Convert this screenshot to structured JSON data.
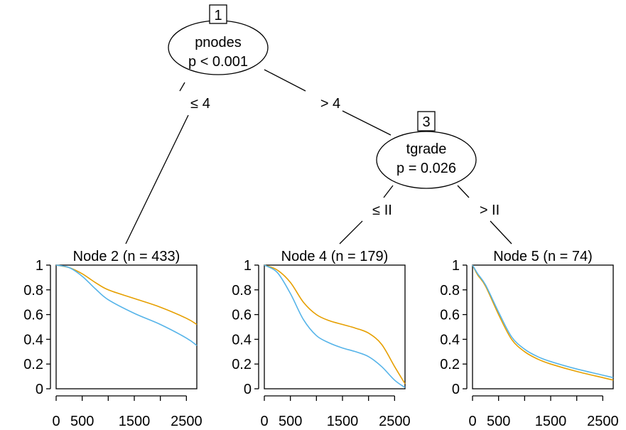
{
  "tree": {
    "inner_nodes": [
      {
        "id": "1",
        "variable": "pnodes",
        "pvalue": "p < 0.001"
      },
      {
        "id": "3",
        "variable": "tgrade",
        "pvalue": "p = 0.026"
      }
    ],
    "edges": [
      {
        "from": "1",
        "to": "2",
        "label": "≤ 4"
      },
      {
        "from": "1",
        "to": "3",
        "label": "> 4"
      },
      {
        "from": "3",
        "to": "4",
        "label": "≤ II"
      },
      {
        "from": "3",
        "to": "5",
        "label": "> II"
      }
    ]
  },
  "colors": {
    "orange": "#E69F00",
    "blue": "#56B4E9"
  },
  "chart_data": [
    {
      "type": "line",
      "title": "Node 2 (n = 433)",
      "xlim": [
        0,
        2700
      ],
      "ylim": [
        0,
        1
      ],
      "x_ticks": [
        0,
        500,
        1000,
        1500,
        2000,
        2500
      ],
      "x_tick_labels": [
        "0",
        "500",
        "",
        "1500",
        "",
        "2500"
      ],
      "y_ticks": [
        0,
        0.2,
        0.4,
        0.6,
        0.8,
        1
      ],
      "y_tick_labels": [
        "0",
        "0.2",
        "0.4",
        "0.6",
        "0.8",
        "1"
      ],
      "x": [
        0,
        250,
        500,
        750,
        1000,
        1500,
        2000,
        2500,
        2700
      ],
      "series": [
        {
          "color": "orange",
          "values": [
            1.0,
            0.98,
            0.93,
            0.86,
            0.8,
            0.73,
            0.66,
            0.57,
            0.52
          ]
        },
        {
          "color": "blue",
          "values": [
            1.0,
            0.98,
            0.91,
            0.81,
            0.72,
            0.61,
            0.52,
            0.41,
            0.35
          ]
        }
      ]
    },
    {
      "type": "line",
      "title": "Node 4 (n = 179)",
      "xlim": [
        0,
        2700
      ],
      "ylim": [
        0,
        1
      ],
      "x_ticks": [
        0,
        500,
        1000,
        1500,
        2000,
        2500
      ],
      "x_tick_labels": [
        "0",
        "500",
        "",
        "1500",
        "",
        "2500"
      ],
      "y_ticks": [
        0,
        0.2,
        0.4,
        0.6,
        0.8,
        1
      ],
      "y_tick_labels": [
        "0",
        "0.2",
        "0.4",
        "0.6",
        "0.8",
        "1"
      ],
      "x": [
        0,
        250,
        500,
        750,
        1000,
        1250,
        1500,
        1750,
        2000,
        2250,
        2500,
        2700
      ],
      "series": [
        {
          "color": "orange",
          "values": [
            1.0,
            0.96,
            0.86,
            0.7,
            0.6,
            0.55,
            0.52,
            0.49,
            0.45,
            0.36,
            0.18,
            0.04
          ]
        },
        {
          "color": "blue",
          "values": [
            1.0,
            0.94,
            0.77,
            0.56,
            0.43,
            0.37,
            0.33,
            0.3,
            0.26,
            0.18,
            0.07,
            0.01
          ]
        }
      ]
    },
    {
      "type": "line",
      "title": "Node 5 (n = 74)",
      "xlim": [
        0,
        2700
      ],
      "ylim": [
        0,
        1
      ],
      "x_ticks": [
        0,
        500,
        1000,
        1500,
        2000,
        2500
      ],
      "x_tick_labels": [
        "0",
        "500",
        "",
        "1500",
        "",
        "2500"
      ],
      "y_ticks": [
        0,
        0.2,
        0.4,
        0.6,
        0.8,
        1
      ],
      "y_tick_labels": [
        "0",
        "0.2",
        "0.4",
        "0.6",
        "0.8",
        "1"
      ],
      "x": [
        0,
        100,
        250,
        500,
        750,
        1000,
        1250,
        1500,
        2000,
        2500,
        2700
      ],
      "series": [
        {
          "color": "orange",
          "values": [
            1.0,
            0.92,
            0.83,
            0.6,
            0.4,
            0.3,
            0.24,
            0.2,
            0.14,
            0.09,
            0.07
          ]
        },
        {
          "color": "blue",
          "values": [
            1.0,
            0.93,
            0.84,
            0.62,
            0.42,
            0.32,
            0.26,
            0.22,
            0.16,
            0.11,
            0.09
          ]
        }
      ]
    }
  ]
}
